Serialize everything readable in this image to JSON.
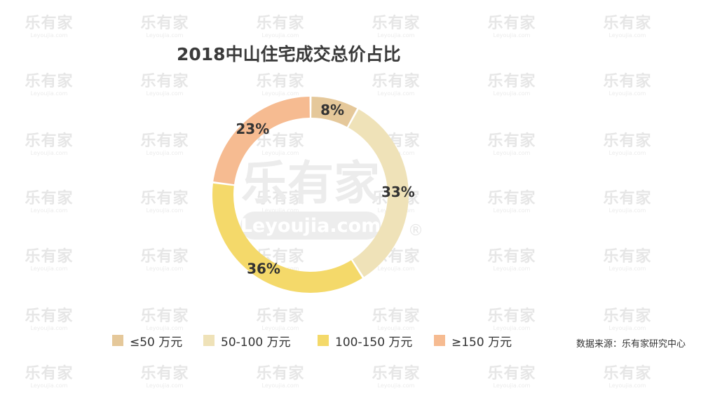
{
  "watermark": {
    "tile_cn": "乐有家",
    "tile_en": "Leyoujia.com",
    "center_cn": "乐有家",
    "center_en": "Leyoujia.com",
    "registered_mark": "®"
  },
  "chart_data": {
    "type": "pie",
    "variant": "donut",
    "title": "2018中山住宅成交总价占比",
    "categories": [
      "≤50 万元",
      "50-100 万元",
      "100-150 万元",
      "≥150 万元"
    ],
    "values": [
      8,
      33,
      36,
      23
    ],
    "value_labels": [
      "8%",
      "33%",
      "36%",
      "23%"
    ],
    "colors": [
      "#e5c89a",
      "#efe2b8",
      "#f4d96a",
      "#f6bb91"
    ],
    "legend_position": "bottom",
    "start_angle_deg": 0,
    "direction": "clockwise"
  },
  "source": "数据来源：乐有家研究中心"
}
